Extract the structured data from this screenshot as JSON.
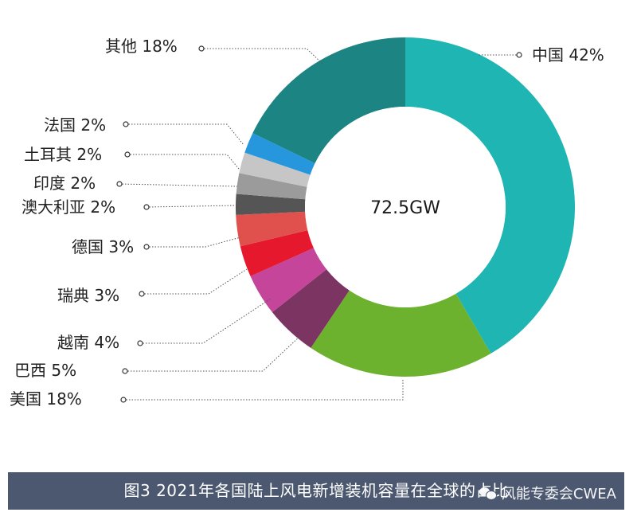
{
  "chart_data": {
    "type": "pie",
    "style": "donut",
    "center_label": "72.5GW",
    "slices": [
      {
        "label": "中国 42%",
        "value": 42,
        "color": "#1fb5b3"
      },
      {
        "label": "美国 18%",
        "value": 18,
        "color": "#6db22e"
      },
      {
        "label": "巴西 5%",
        "value": 5,
        "color": "#7c3462"
      },
      {
        "label": "越南 4%",
        "value": 4,
        "color": "#c4459a"
      },
      {
        "label": "瑞典 3%",
        "value": 3,
        "color": "#e5182d"
      },
      {
        "label": "德国 3%",
        "value": 3,
        "color": "#e0504c"
      },
      {
        "label": "澳大利亚 2%",
        "value": 2,
        "color": "#555555"
      },
      {
        "label": "印度 2%",
        "value": 2,
        "color": "#9b9b9b"
      },
      {
        "label": "土耳其 2%",
        "value": 2,
        "color": "#c6c6c6"
      },
      {
        "label": "法国 2%",
        "value": 2,
        "color": "#2797dd"
      },
      {
        "label": "其他 18%",
        "value": 18,
        "color": "#1c8482"
      }
    ]
  },
  "caption": "图3 2021年各国陆上风电新增装机容量在全球的占比",
  "watermark": "风能专委会CWEA"
}
